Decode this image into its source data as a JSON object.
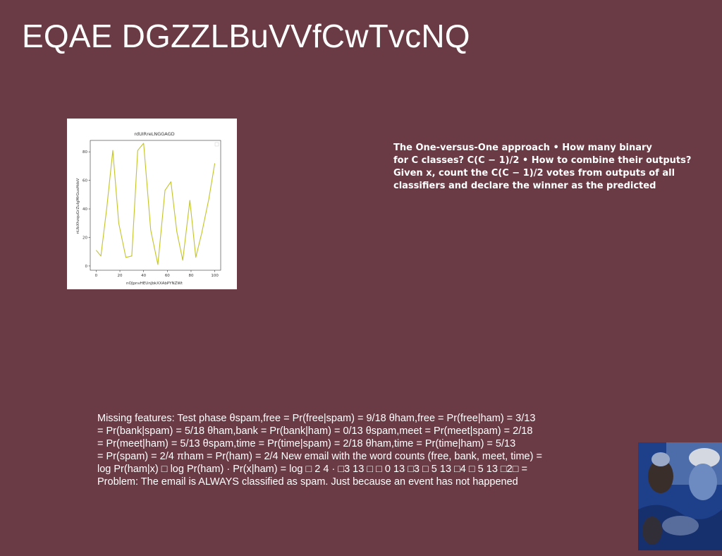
{
  "slide": {
    "title": "EQAE DGZZLBuVVfCwTvcNQ",
    "ovo_text": "The One-versus-One approach • How many binary\nfor C classes? C(C − 1)/2 • How to combine their outputs?\nGiven x, count the C(C − 1)/2 votes from outputs of all\nclassifiers and declare the winner as the predicted",
    "spam_text": "Missing features: Test phase θspam,free = Pr(free|spam) = 9/18 θham,free = Pr(free|ham) = 3/13\n= Pr(bank|spam) = 5/18 θham,bank = Pr(bank|ham) = 0/13 θspam,meet = Pr(meet|spam) = 2/18\n= Pr(meet|ham) = 5/13 θspam,time = Pr(time|spam) = 2/18 θham,time = Pr(time|ham) = 5/13\n= Pr(spam) = 2/4 πham = Pr(ham) = 2/4 New email with the word counts (free, bank, meet, time) =\nlog Pr(ham|x) □ log Pr(ham) · Pr(x|ham) = log □ 2 4 · □3 13 □ □ 0 13 □3 □ 5 13 □4 □ 5 13 □2□ =\nProblem: The email is ALWAYS classified as spam. Just because an event has not happened"
  },
  "chart_data": {
    "type": "line",
    "title": "rdUIRreLNGGAGD",
    "xlabel": "nOJpnvHEUnJbkXXAbPYNZWt",
    "ylabel": "nUbXhzquGrZuIgMrGusHdsV",
    "xlim": [
      -5,
      105
    ],
    "ylim": [
      -3,
      88
    ],
    "xticks": [
      0,
      20,
      40,
      60,
      80,
      100
    ],
    "yticks": [
      0,
      20,
      40,
      60,
      80
    ],
    "line_color": "#c2c42a",
    "x": [
      0,
      4,
      9,
      14,
      19,
      25,
      30,
      35,
      40,
      46,
      52,
      58,
      63,
      68,
      73,
      79,
      84,
      89,
      95,
      100
    ],
    "values": [
      11,
      7,
      41,
      81,
      30,
      6,
      7,
      81,
      86,
      25,
      1,
      53,
      59,
      24,
      4,
      46,
      6,
      23,
      47,
      72
    ]
  },
  "photo": {
    "colors": [
      "#1e3f8a",
      "#6d8bc0",
      "#d4d8e0",
      "#3a2e2a",
      "#9aa9c8"
    ]
  }
}
